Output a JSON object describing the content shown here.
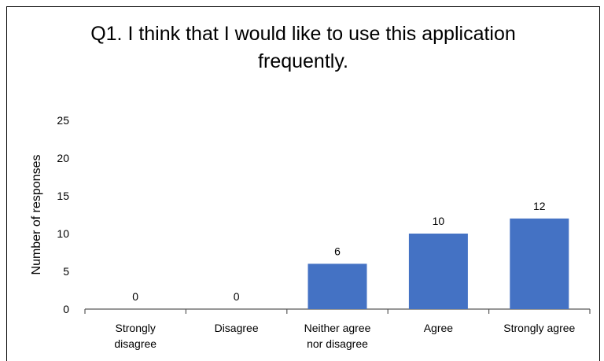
{
  "chart_data": {
    "type": "bar",
    "title_lines": [
      "Q1. I think that I would like to use this application",
      "frequently."
    ],
    "xlabel": "",
    "ylabel": "Number of responses",
    "categories": [
      [
        "Strongly",
        "disagree"
      ],
      [
        "Disagree"
      ],
      [
        "Neither agree",
        "nor disagree"
      ],
      [
        "Agree"
      ],
      [
        "Strongly agree"
      ]
    ],
    "values": [
      0,
      0,
      6,
      10,
      12
    ],
    "ylim": [
      0,
      25
    ],
    "yticks": [
      0,
      5,
      10,
      15,
      20,
      25
    ],
    "bar_color": "#4472C4",
    "grid": false,
    "legend": "none"
  }
}
